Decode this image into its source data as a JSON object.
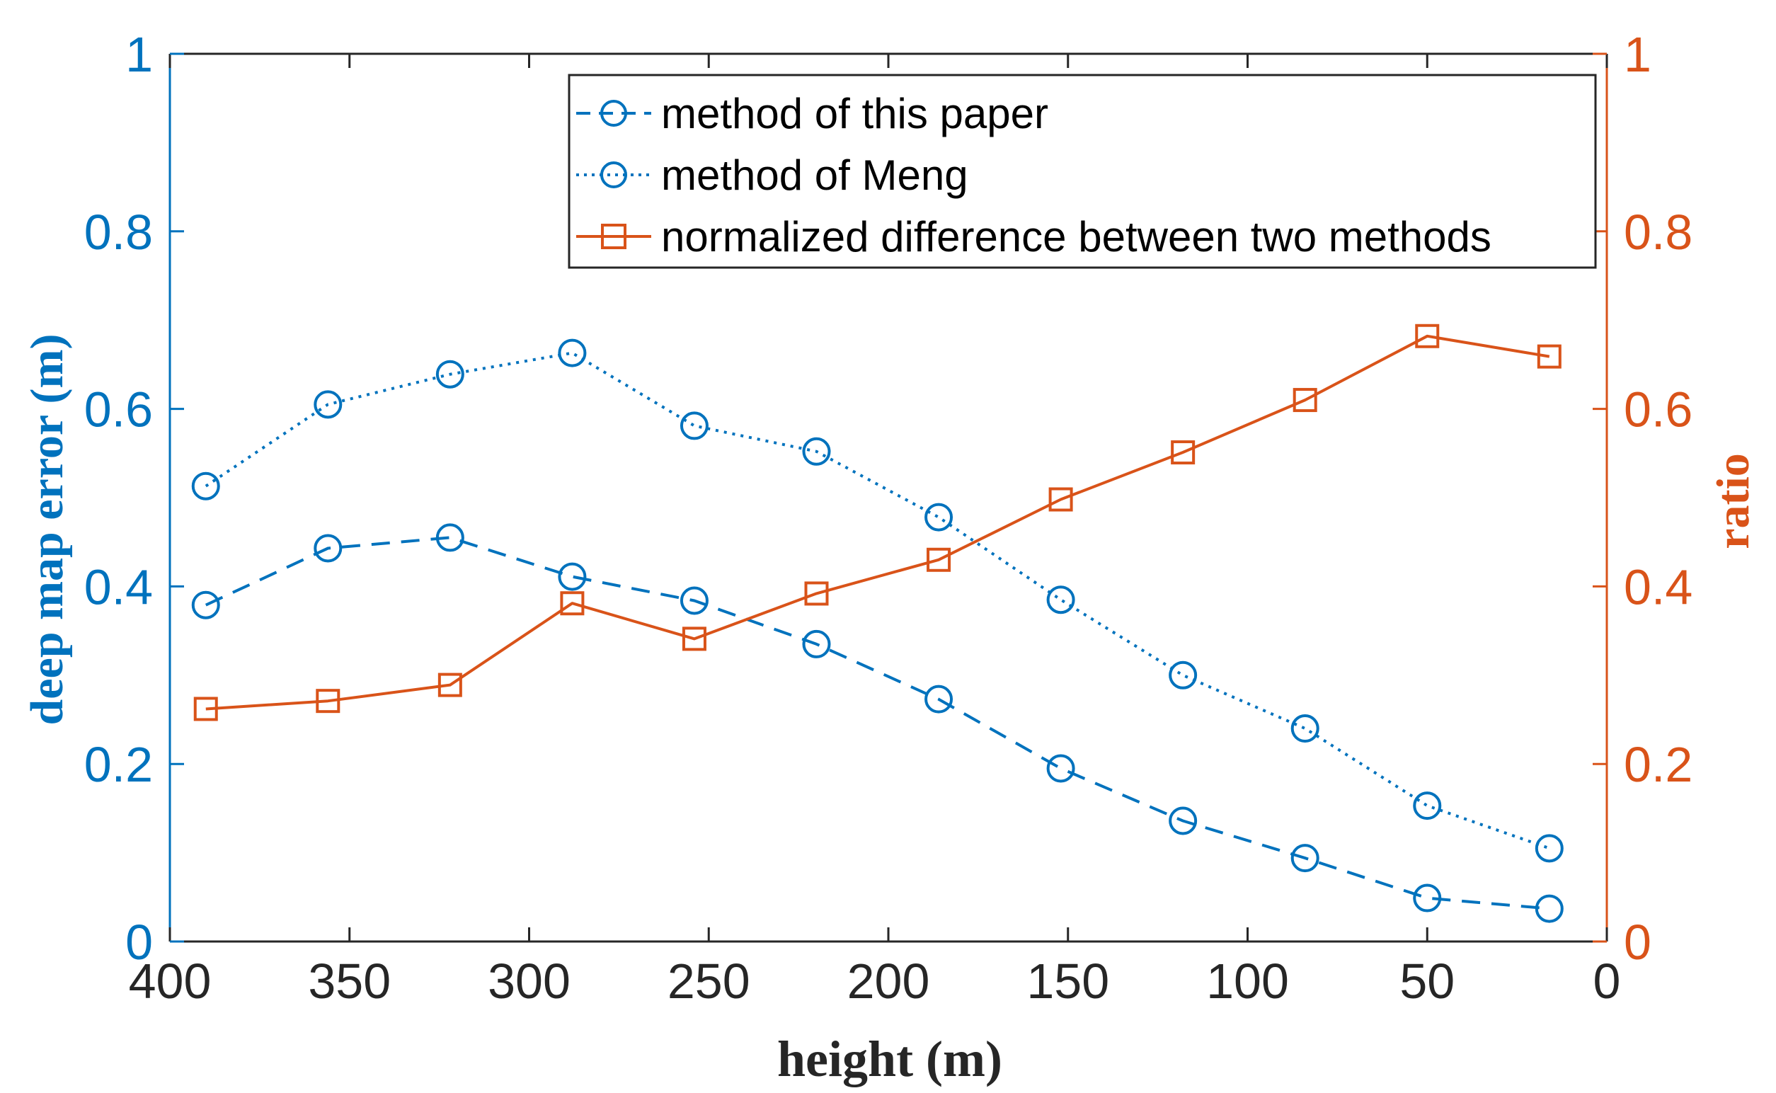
{
  "chart_data": {
    "type": "line",
    "xlabel": "height (m)",
    "ylabel_left": "deep map error (m)",
    "ylabel_right": "ratio",
    "xlim": [
      400,
      0
    ],
    "ylim_left": [
      0,
      1
    ],
    "ylim_right": [
      0,
      1
    ],
    "x_ticks": [
      400,
      350,
      300,
      250,
      200,
      150,
      100,
      50,
      0
    ],
    "y_ticks_left": [
      "0",
      "0.2",
      "0.4",
      "0.6",
      "0.8",
      "1"
    ],
    "y_ticks_right": [
      "0",
      "0.2",
      "0.4",
      "0.6",
      "0.8",
      "1"
    ],
    "x": [
      390,
      356,
      322,
      288,
      254,
      220,
      186,
      152,
      118,
      84,
      50,
      16
    ],
    "series": [
      {
        "name": "method of this paper",
        "axis": "left",
        "line": "dashed",
        "marker": "circle",
        "values": [
          0.379,
          0.443,
          0.455,
          0.411,
          0.384,
          0.335,
          0.273,
          0.195,
          0.136,
          0.094,
          0.049,
          0.037
        ]
      },
      {
        "name": "method of Meng",
        "axis": "left",
        "line": "dotted",
        "marker": "circle",
        "values": [
          0.513,
          0.605,
          0.639,
          0.663,
          0.581,
          0.552,
          0.478,
          0.385,
          0.3,
          0.24,
          0.153,
          0.105
        ]
      },
      {
        "name": "normalized difference between two methods",
        "axis": "right",
        "line": "solid",
        "marker": "square",
        "values": [
          0.262,
          0.271,
          0.289,
          0.381,
          0.341,
          0.392,
          0.43,
          0.498,
          0.551,
          0.61,
          0.682,
          0.659
        ]
      }
    ],
    "legend": "top-right",
    "colors": {
      "left": "#0072BD",
      "right": "#D95319",
      "frame": "#262626"
    }
  }
}
